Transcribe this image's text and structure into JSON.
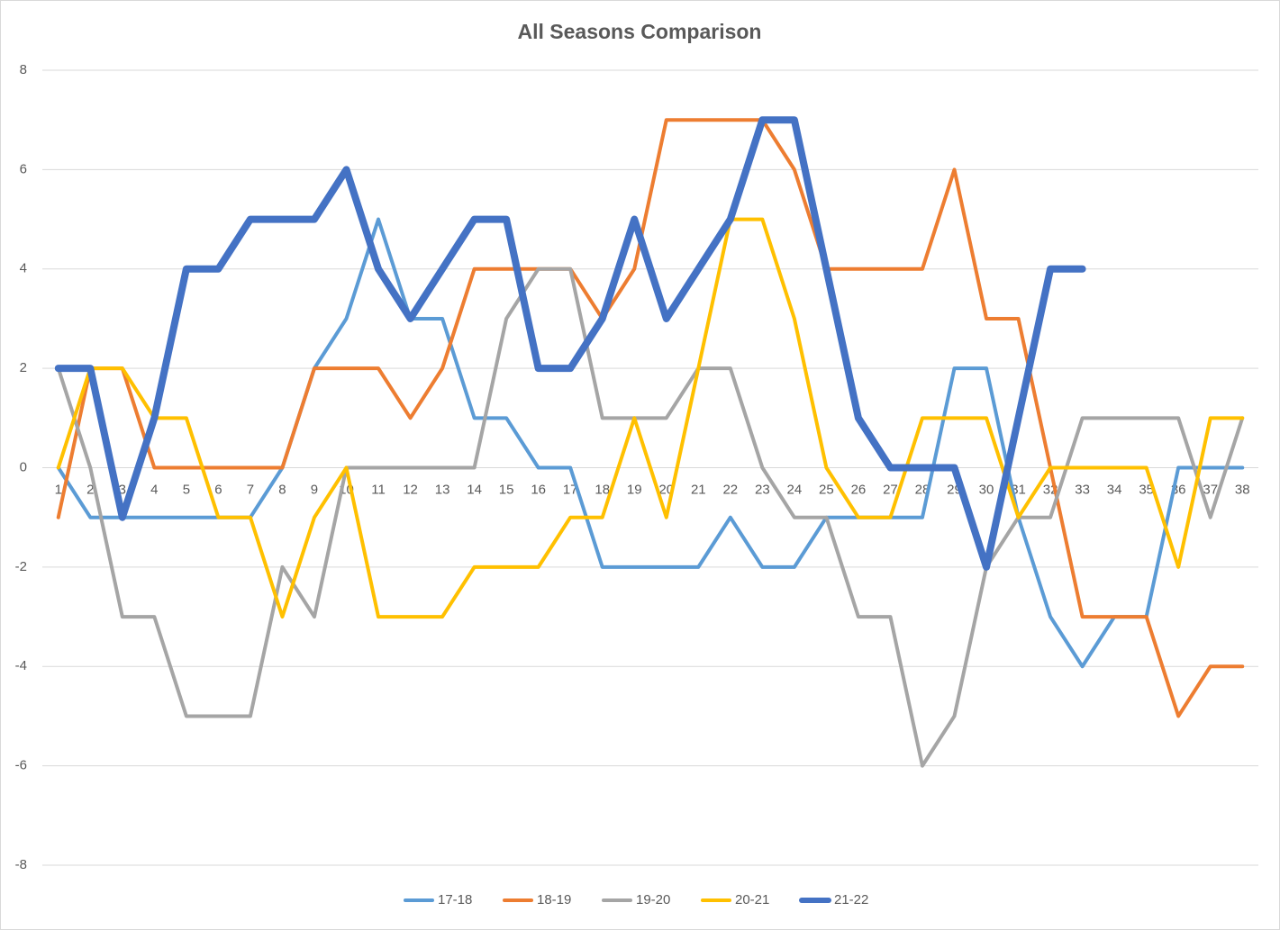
{
  "chart_data": {
    "type": "line",
    "title": "All Seasons Comparison",
    "categories": [
      "1",
      "2",
      "3",
      "4",
      "5",
      "6",
      "7",
      "8",
      "9",
      "10",
      "11",
      "12",
      "13",
      "14",
      "15",
      "16",
      "17",
      "18",
      "19",
      "20",
      "21",
      "22",
      "23",
      "24",
      "25",
      "26",
      "27",
      "28",
      "29",
      "30",
      "31",
      "32",
      "33",
      "34",
      "35",
      "36",
      "37",
      "38"
    ],
    "series": [
      {
        "name": "17-18",
        "color": "#5b9bd5",
        "values": [
          0,
          -1,
          -1,
          -1,
          -1,
          -1,
          -1,
          0,
          2,
          3,
          5,
          3,
          3,
          1,
          1,
          0,
          0,
          -2,
          -2,
          -2,
          -2,
          -1,
          -2,
          -2,
          -1,
          -1,
          -1,
          -1,
          2,
          2,
          -1,
          -3,
          -4,
          -3,
          -3,
          0,
          0,
          0
        ]
      },
      {
        "name": "18-19",
        "color": "#ed7d31",
        "values": [
          -1,
          2,
          2,
          0,
          0,
          0,
          0,
          0,
          2,
          2,
          2,
          1,
          2,
          4,
          4,
          4,
          4,
          3,
          4,
          7,
          7,
          7,
          7,
          6,
          4,
          4,
          4,
          4,
          6,
          3,
          3,
          0,
          -3,
          -3,
          -3,
          -5,
          -4,
          -4
        ]
      },
      {
        "name": "19-20",
        "color": "#a5a5a5",
        "values": [
          2,
          0,
          -3,
          -3,
          -5,
          -5,
          -5,
          -2,
          -3,
          0,
          0,
          0,
          0,
          0,
          3,
          4,
          4,
          1,
          1,
          1,
          2,
          2,
          0,
          -1,
          -1,
          -3,
          -3,
          -6,
          -5,
          -2,
          -1,
          -1,
          1,
          1,
          1,
          1,
          -1,
          1
        ]
      },
      {
        "name": "20-21",
        "color": "#ffc000",
        "values": [
          0,
          2,
          2,
          1,
          1,
          -1,
          -1,
          -3,
          -1,
          0,
          -3,
          -3,
          -3,
          -2,
          -2,
          -2,
          -1,
          -1,
          1,
          -1,
          2,
          5,
          5,
          3,
          0,
          -1,
          -1,
          1,
          1,
          1,
          -1,
          0,
          0,
          0,
          0,
          -2,
          1,
          1
        ]
      },
      {
        "name": "21-22",
        "color": "#4472c4",
        "values": [
          2,
          2,
          -1,
          1,
          4,
          4,
          5,
          5,
          5,
          6,
          4,
          3,
          4,
          5,
          5,
          2,
          2,
          3,
          5,
          3,
          4,
          5,
          7,
          7,
          4,
          1,
          0,
          0,
          0,
          -2,
          1,
          4,
          4,
          null,
          null,
          null,
          null,
          null
        ]
      }
    ],
    "ylim": [
      -8,
      8
    ],
    "yticks": [
      -8,
      -6,
      -4,
      -2,
      0,
      2,
      4,
      6,
      8
    ],
    "grid": true,
    "legend": "bottom"
  }
}
